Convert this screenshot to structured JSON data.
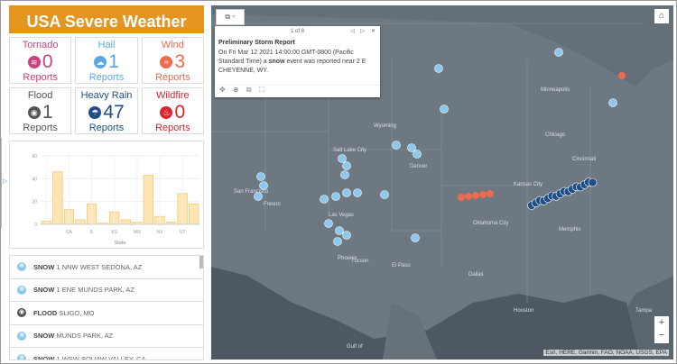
{
  "app": {
    "title": "USA Severe Weather"
  },
  "cards": [
    {
      "label": "Tornado",
      "count": "0",
      "unit": "Reports",
      "color": "#c8427f",
      "icon": "tornado-icon"
    },
    {
      "label": "Hail",
      "count": "1",
      "unit": "Reports",
      "color": "#5aa8e6",
      "icon": "hail-icon"
    },
    {
      "label": "Wind",
      "count": "3",
      "unit": "Reports",
      "color": "#ee6a50",
      "icon": "wind-icon"
    },
    {
      "label": "Flood",
      "count": "1",
      "unit": "Reports",
      "color": "#555555",
      "icon": "flood-icon"
    },
    {
      "label": "Heavy Rain",
      "count": "47",
      "unit": "Reports",
      "color": "#1f4e86",
      "icon": "heavy-rain-icon"
    },
    {
      "label": "Wildfire",
      "count": "0",
      "unit": "Reports",
      "color": "#d7262e",
      "icon": "wildfire-icon"
    }
  ],
  "chart_data": {
    "type": "bar",
    "xlabel": "State",
    "ylabel": "",
    "ylim": [
      0,
      60
    ],
    "yticks": [
      0,
      20,
      40,
      60
    ],
    "tick_labels": [
      "",
      "",
      "CA",
      "",
      "IL",
      "",
      "KS",
      "",
      "MN",
      "",
      "NV",
      "",
      "UT",
      ""
    ],
    "values": [
      3,
      46,
      13,
      4,
      18,
      1,
      11,
      4,
      2,
      43,
      7,
      2,
      27,
      18
    ],
    "grid": true,
    "color": "#fde6b4",
    "stroke": "#f5c46a"
  },
  "list": [
    {
      "type": "SNOW",
      "place": "1 NNW WEST SEDONA, AZ",
      "icon": "snow-icon"
    },
    {
      "type": "SNOW",
      "place": "1 ENE MUNDS PARK, AZ",
      "icon": "snow-icon"
    },
    {
      "type": "FLOOD",
      "place": "SLIGO, MO",
      "icon": "flood-icon"
    },
    {
      "type": "SNOW",
      "place": "MUNDS PARK, AZ",
      "icon": "snow-icon"
    },
    {
      "type": "SNOW",
      "place": "1 WSW SQUAW VALLEY, CA",
      "icon": "snow-icon"
    }
  ],
  "popup": {
    "pager": "1 of 8",
    "title": "Preliminary Storm Report",
    "body_pre": "On Fri Mar 12 2021 14:00:00 GMT-0800 (Pacific Standard Time) a ",
    "body_bold": "snow",
    "body_post": " event was reported near 2 E CHEYENNE, WY."
  },
  "map": {
    "labels": [
      "Minneapolis",
      "Wyoming",
      "Salt Lake City",
      "Denver",
      "San Francisco",
      "Fresno",
      "Las Vegas",
      "Phoenix",
      "Tucson",
      "El Paso",
      "Oklahoma City",
      "Kansas City",
      "Chicago",
      "Cincinnati",
      "Memphis",
      "Dallas",
      "Houston",
      "Tampa",
      "Gulf of"
    ],
    "attribution": "Esri, HERE, Garmin, FAO, NOAA, USGS, EPA",
    "zoom_in": "+",
    "zoom_out": "−"
  }
}
